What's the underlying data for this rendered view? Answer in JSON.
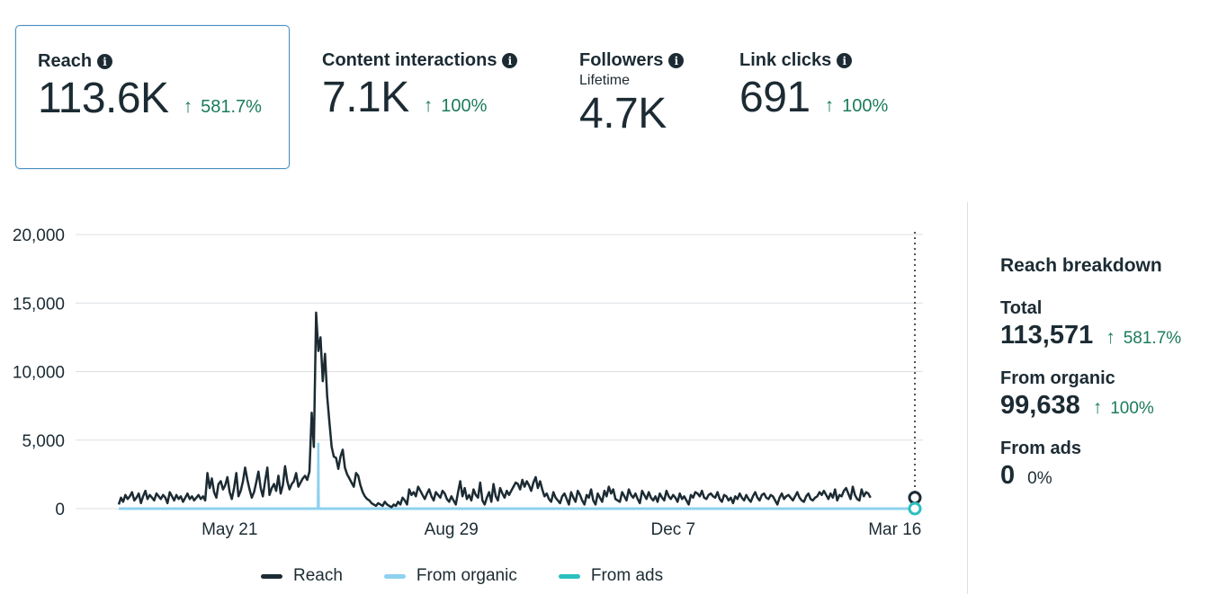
{
  "colors": {
    "reach": "#1c2b33",
    "organic": "#8ed0f0",
    "ads": "#2bbfbf",
    "positive": "#1b7b5c",
    "grid": "#dcdfe3"
  },
  "summary_cards": [
    {
      "title": "Reach",
      "value": "113.6K",
      "change": "581.7%",
      "selected": true
    },
    {
      "title": "Content interactions",
      "value": "7.1K",
      "change": "100%"
    },
    {
      "title": "Followers",
      "subtitle": "Lifetime",
      "value": "4.7K"
    },
    {
      "title": "Link clicks",
      "value": "691",
      "change": "100%"
    }
  ],
  "info_icon_glyph": "i",
  "arrow_glyph": "↑",
  "breakdown": {
    "title": "Reach breakdown",
    "total_label": "Total",
    "total_value": "113,571",
    "total_change": "581.7%",
    "organic_label": "From organic",
    "organic_value": "99,638",
    "organic_change": "100%",
    "ads_label": "From ads",
    "ads_value": "0",
    "ads_change": "0%"
  },
  "chart_data": {
    "type": "line",
    "y_ticks": [
      "20,000",
      "15,000",
      "10,000",
      "5,000",
      "0"
    ],
    "ylim": [
      0,
      20000
    ],
    "x_ticks": [
      "May 21",
      "Aug 29",
      "Dec 7",
      "Mar 16"
    ],
    "x_tick_day_index": [
      50,
      150,
      250,
      350
    ],
    "total_days": 360,
    "legend": [
      "Reach",
      "From organic",
      "From ads"
    ],
    "series": [
      {
        "name": "Reach",
        "values": [
          300,
          800,
          500,
          1000,
          700,
          900,
          1200,
          600,
          800,
          1100,
          400,
          900,
          1300,
          700,
          1000,
          800,
          600,
          1100,
          900,
          700,
          1000,
          800,
          400,
          1200,
          900,
          600,
          1000,
          700,
          900,
          500,
          800,
          1100,
          700,
          900,
          600,
          800,
          1000,
          700,
          900,
          600,
          2600,
          1500,
          2200,
          1200,
          800,
          1800,
          2000,
          1400,
          1700,
          2300,
          1200,
          700,
          1500,
          2600,
          900,
          1300,
          2000,
          3000,
          2100,
          1400,
          800,
          1200,
          1900,
          2700,
          1500,
          900,
          2000,
          3000,
          1000,
          1500,
          1800,
          1300,
          2400,
          1100,
          1700,
          3100,
          2000,
          1400,
          1800,
          2000,
          2600,
          1600,
          1900,
          2200,
          2400,
          2100,
          2700,
          7000,
          4500,
          14300,
          11500,
          12500,
          9300,
          11300,
          8200,
          6300,
          4500,
          3800,
          3700,
          2900,
          3800,
          4300,
          3000,
          2500,
          2200,
          1900,
          1600,
          2600,
          2400,
          1700,
          1200,
          900,
          700,
          600,
          400,
          300,
          200,
          400,
          300,
          200,
          500,
          300,
          200,
          100,
          300,
          200,
          500,
          300,
          800,
          600,
          300,
          1400,
          1000,
          1200,
          900,
          1600,
          1300,
          1000,
          700,
          1100,
          1400,
          900,
          600,
          1200,
          1000,
          800,
          1300,
          1100,
          700,
          500,
          900,
          600,
          300,
          1200,
          2000,
          900,
          1500,
          700,
          1000,
          600,
          1400,
          1000,
          800,
          1900,
          600,
          300,
          800,
          1200,
          500,
          1800,
          900,
          600,
          1500,
          1100,
          800,
          1300,
          1000,
          1300,
          1600,
          1900,
          1800,
          1400,
          2100,
          1600,
          2000,
          1700,
          1300,
          1900,
          2300,
          1500,
          2000,
          1400,
          900,
          1100,
          700,
          500,
          1200,
          800,
          600,
          400,
          900,
          1100,
          700,
          300,
          1200,
          800,
          500,
          1300,
          1000,
          600,
          300,
          1000,
          800,
          1400,
          600,
          300,
          1100,
          800,
          500,
          1300,
          900,
          1600,
          1100,
          1400,
          700,
          600,
          500,
          1200,
          900,
          600,
          1400,
          1000,
          800,
          1100,
          700,
          400,
          1300,
          1000,
          700,
          1200,
          800,
          600,
          900,
          500,
          1100,
          800,
          600,
          1300,
          900,
          700,
          1000,
          800,
          500,
          1100,
          700,
          900,
          600,
          300,
          1000,
          800,
          1200,
          1100,
          900,
          1300,
          800,
          700,
          1000,
          1100,
          900,
          800,
          1200,
          700,
          500,
          1000,
          900,
          600,
          800,
          400,
          900,
          700,
          1100,
          800,
          600,
          1000,
          700,
          500,
          900,
          1200,
          800,
          600,
          1000,
          1100,
          800,
          700,
          1000,
          900,
          600,
          300,
          800,
          1100,
          700,
          900,
          1000,
          800,
          600,
          900,
          1200,
          800,
          600,
          500,
          900,
          1100,
          700,
          600,
          800,
          900,
          1200,
          1000,
          1300,
          1000,
          700,
          1100,
          800,
          1400,
          600,
          1000,
          900,
          1300,
          1500,
          1100,
          700,
          1600,
          1000,
          700,
          600,
          1400,
          900,
          1200,
          1100,
          800
        ]
      },
      {
        "name": "From organic",
        "spike_day": 90,
        "spike_value": 4800
      },
      {
        "name": "From ads",
        "values": "0"
      }
    ]
  }
}
